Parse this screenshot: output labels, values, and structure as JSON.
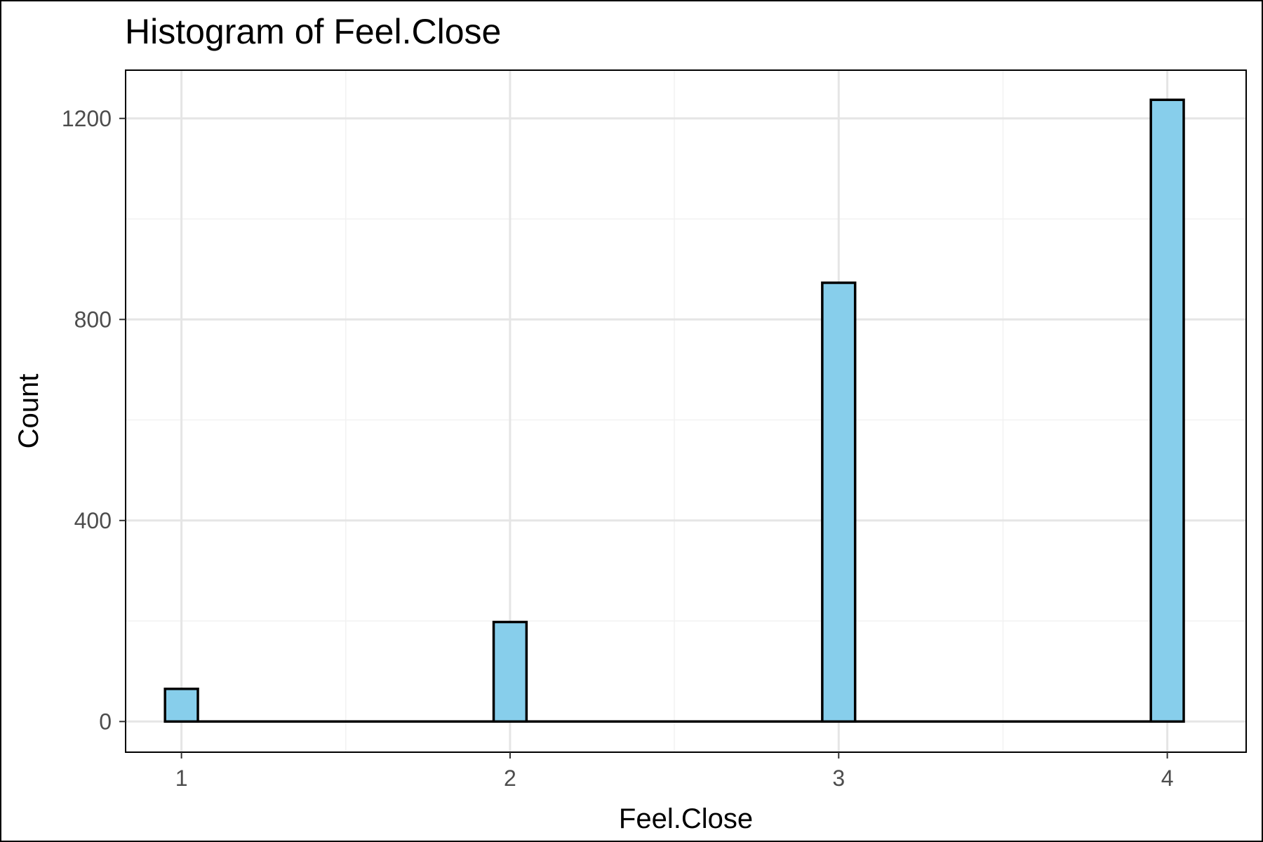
{
  "chart_data": {
    "type": "bar",
    "title": "Histogram of Feel.Close",
    "xlabel": "Feel.Close",
    "ylabel": "Count",
    "x": [
      1,
      2,
      3,
      4
    ],
    "values": [
      65,
      198,
      873,
      1237
    ],
    "bar_width": 0.1,
    "xlim": [
      0.83,
      4.24
    ],
    "ylim": [
      -61,
      1296
    ],
    "x_ticks": [
      1,
      2,
      3,
      4
    ],
    "x_tick_labels": [
      "1",
      "2",
      "3",
      "4"
    ],
    "y_ticks": [
      0,
      400,
      800,
      1200
    ],
    "y_tick_labels": [
      "0",
      "400",
      "800",
      "1200"
    ],
    "grid": true,
    "legend": "none",
    "colors": {
      "bar_fill": "#87CEEB",
      "bar_stroke": "#000000",
      "grid": "#e5e5e5",
      "panel_border": "#000000"
    }
  }
}
